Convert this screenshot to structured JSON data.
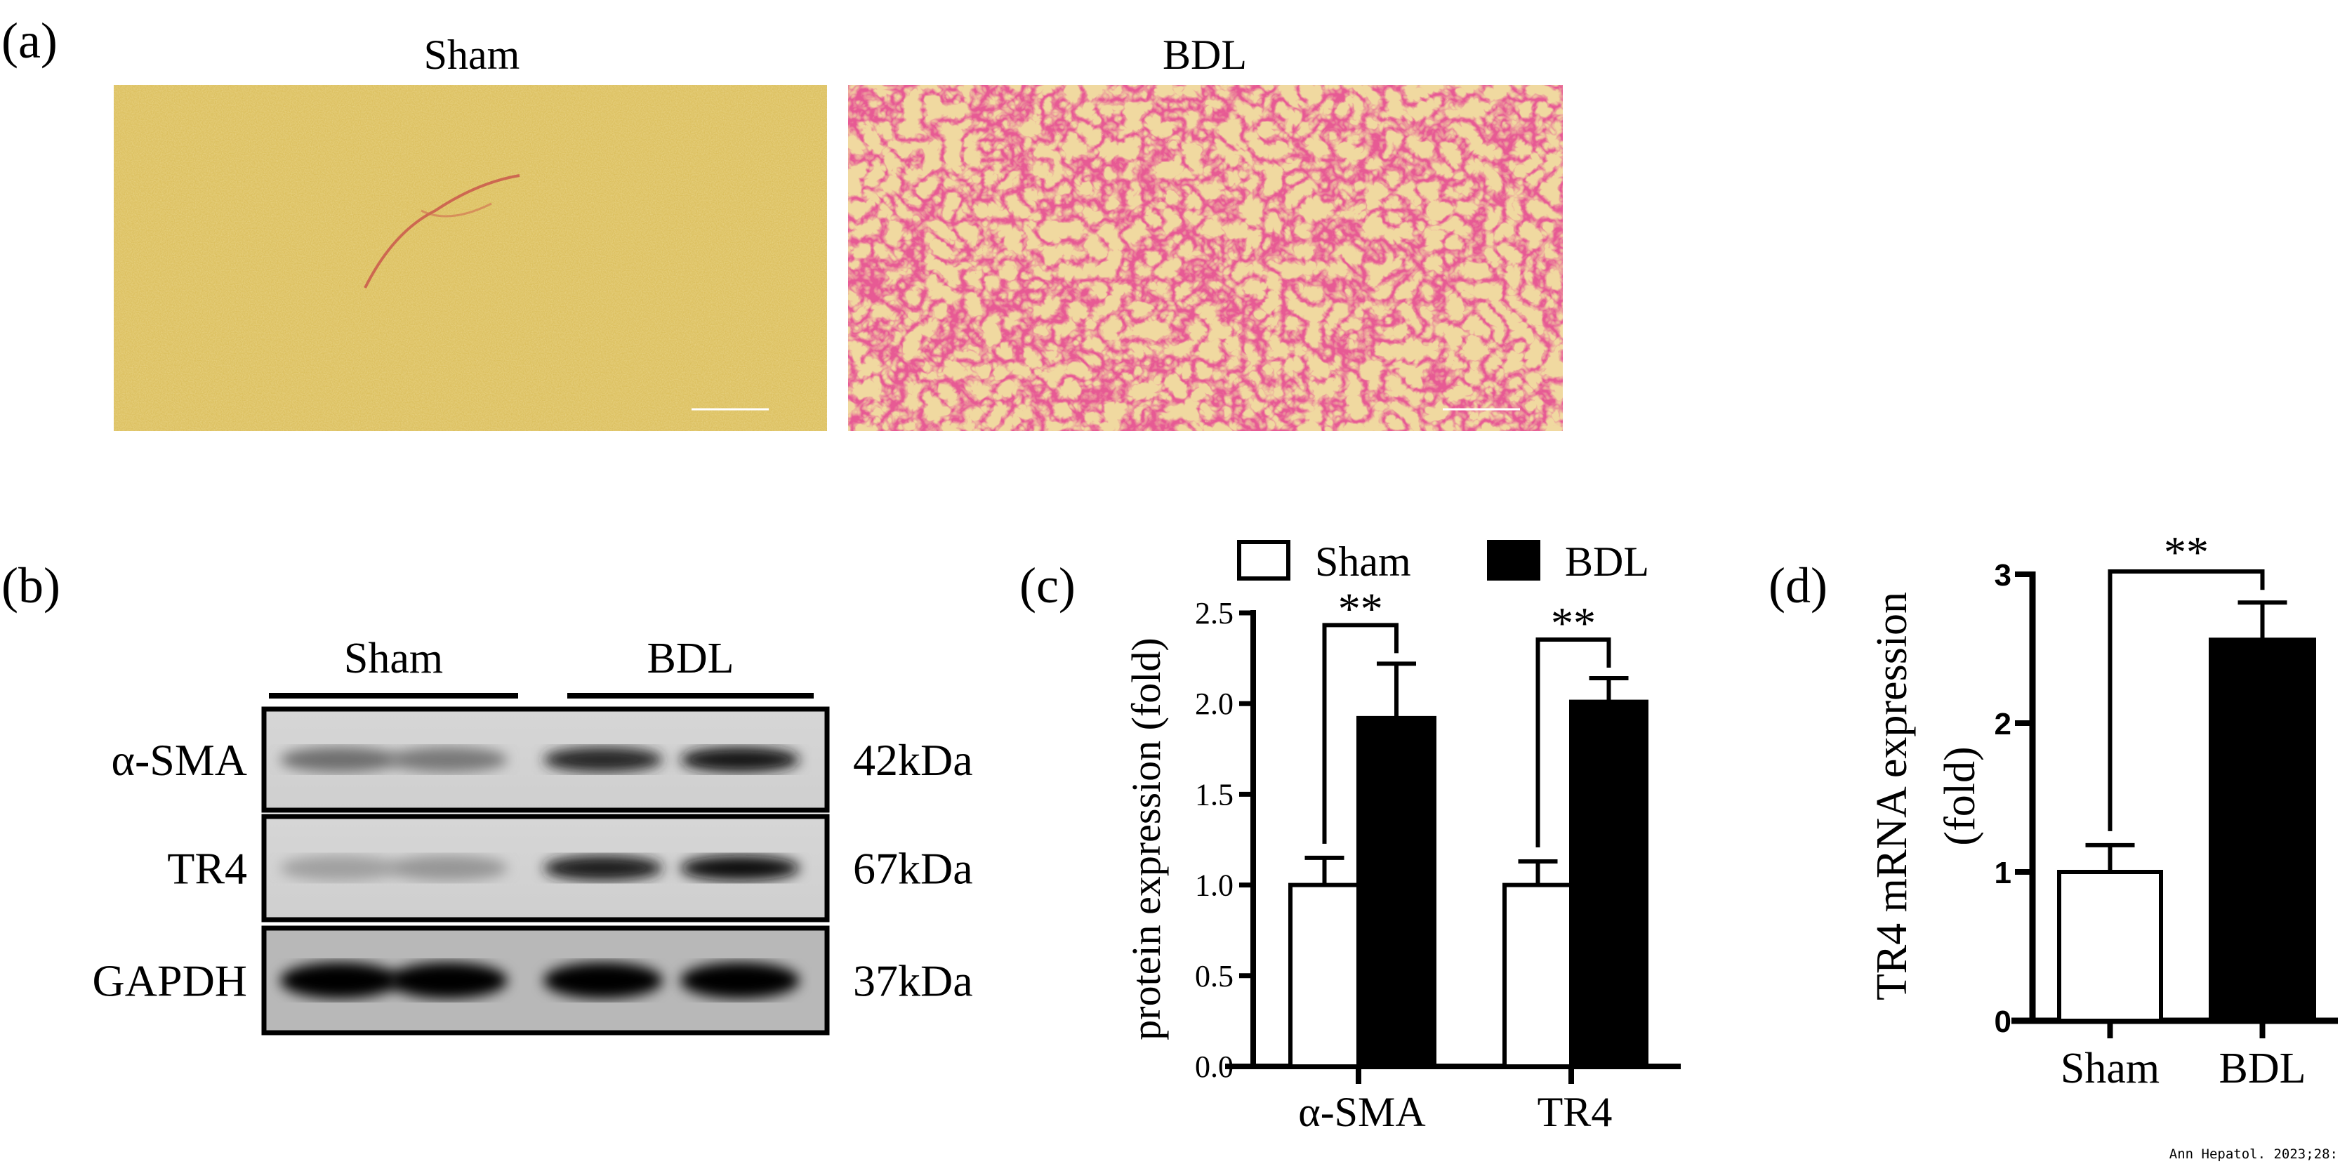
{
  "panels": {
    "a": {
      "tag": "(a)",
      "left_title": "Sham",
      "right_title": "BDL"
    },
    "b": {
      "tag": "(b)",
      "groups": [
        "Sham",
        "BDL"
      ],
      "rows": [
        {
          "label": "α-SMA",
          "size": "42kDa",
          "intensity": [
            0.45,
            0.4,
            0.8,
            0.9
          ]
        },
        {
          "label": "TR4",
          "size": "67kDa",
          "intensity": [
            0.2,
            0.25,
            0.85,
            0.95
          ]
        },
        {
          "label": "GAPDH",
          "size": "37kDa",
          "intensity": [
            1,
            1,
            1,
            1
          ]
        }
      ]
    },
    "c": {
      "tag": "(c)"
    },
    "d": {
      "tag": "(d)"
    }
  },
  "chart_data": [
    {
      "type": "bar",
      "panel": "c",
      "categories": [
        "α-SMA",
        "TR4"
      ],
      "series": [
        {
          "name": "Sham",
          "values": [
            1.0,
            1.0
          ],
          "error": [
            0.15,
            0.13
          ],
          "color": "#ffffff"
        },
        {
          "name": "BDL",
          "values": [
            1.92,
            2.01
          ],
          "error": [
            0.3,
            0.13
          ],
          "color": "#000000"
        }
      ],
      "ylabel": "protein expression (fold)",
      "ylim": [
        0,
        2.5
      ],
      "yticks": [
        "0.0",
        "0.5",
        "1.0",
        "1.5",
        "2.0",
        "2.5"
      ],
      "significance": [
        "**",
        "**"
      ],
      "legend": "top"
    },
    {
      "type": "bar",
      "panel": "d",
      "categories": [
        "Sham",
        "BDL"
      ],
      "values": [
        1.0,
        2.56
      ],
      "error": [
        0.18,
        0.25
      ],
      "colors": [
        "#ffffff",
        "#000000"
      ],
      "ylabel": [
        "TR4 mRNA expression",
        "(fold)"
      ],
      "ylim": [
        0,
        3
      ],
      "yticks": [
        "0",
        "1",
        "2",
        "3"
      ],
      "significance": "**"
    }
  ],
  "footer": {
    "citation": "Ann Hepatol. 2023;28:"
  }
}
